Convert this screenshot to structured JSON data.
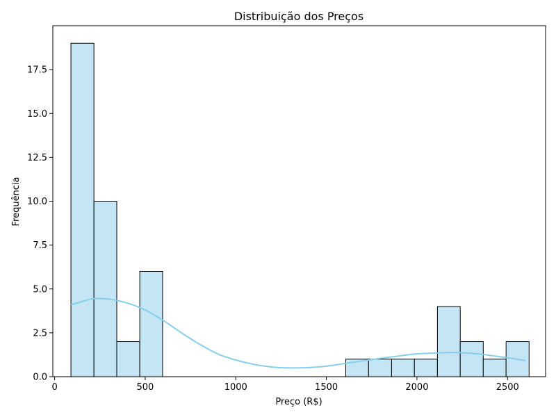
{
  "chart_data": {
    "type": "bar",
    "title": "Distribuição dos Preços",
    "xlabel": "Preço (R$)",
    "ylabel": "Frequência",
    "xlim": [
      -10,
      2710
    ],
    "ylim": [
      0,
      20
    ],
    "x_ticks": [
      0,
      500,
      1000,
      1500,
      2000,
      2500
    ],
    "x_tick_labels": [
      "0",
      "500",
      "1000",
      "1500",
      "2000",
      "2500"
    ],
    "y_ticks": [
      0,
      2.5,
      5,
      7.5,
      10,
      12.5,
      15,
      17.5
    ],
    "y_tick_labels": [
      "0.0",
      "2.5",
      "5.0",
      "7.5",
      "10.0",
      "12.5",
      "15.0",
      "17.5"
    ],
    "grid": false,
    "bins": [
      {
        "x0": 90,
        "x1": 217,
        "count": 19
      },
      {
        "x0": 217,
        "x1": 343,
        "count": 10
      },
      {
        "x0": 343,
        "x1": 470,
        "count": 2
      },
      {
        "x0": 470,
        "x1": 596,
        "count": 6
      },
      {
        "x0": 1607,
        "x1": 1733,
        "count": 1
      },
      {
        "x0": 1733,
        "x1": 1860,
        "count": 1
      },
      {
        "x0": 1860,
        "x1": 1986,
        "count": 1
      },
      {
        "x0": 1986,
        "x1": 2113,
        "count": 1
      },
      {
        "x0": 2113,
        "x1": 2239,
        "count": 4
      },
      {
        "x0": 2239,
        "x1": 2366,
        "count": 2
      },
      {
        "x0": 2366,
        "x1": 2492,
        "count": 1
      },
      {
        "x0": 2492,
        "x1": 2619,
        "count": 2
      }
    ],
    "kde": {
      "x": [
        90,
        200,
        250,
        300,
        400,
        500,
        600,
        700,
        800,
        900,
        1000,
        1100,
        1200,
        1300,
        1400,
        1500,
        1600,
        1700,
        1800,
        1900,
        2000,
        2100,
        2200,
        2300,
        2400,
        2500,
        2600
      ],
      "y": [
        4.1,
        4.42,
        4.45,
        4.42,
        4.2,
        3.8,
        3.2,
        2.5,
        1.85,
        1.3,
        0.95,
        0.7,
        0.55,
        0.5,
        0.52,
        0.6,
        0.75,
        0.9,
        1.05,
        1.18,
        1.3,
        1.35,
        1.38,
        1.33,
        1.22,
        1.08,
        0.92
      ]
    },
    "colors": {
      "bar_fill": "#c4e5f3",
      "bar_edge": "#000000",
      "kde_line": "#87ceeb"
    }
  }
}
